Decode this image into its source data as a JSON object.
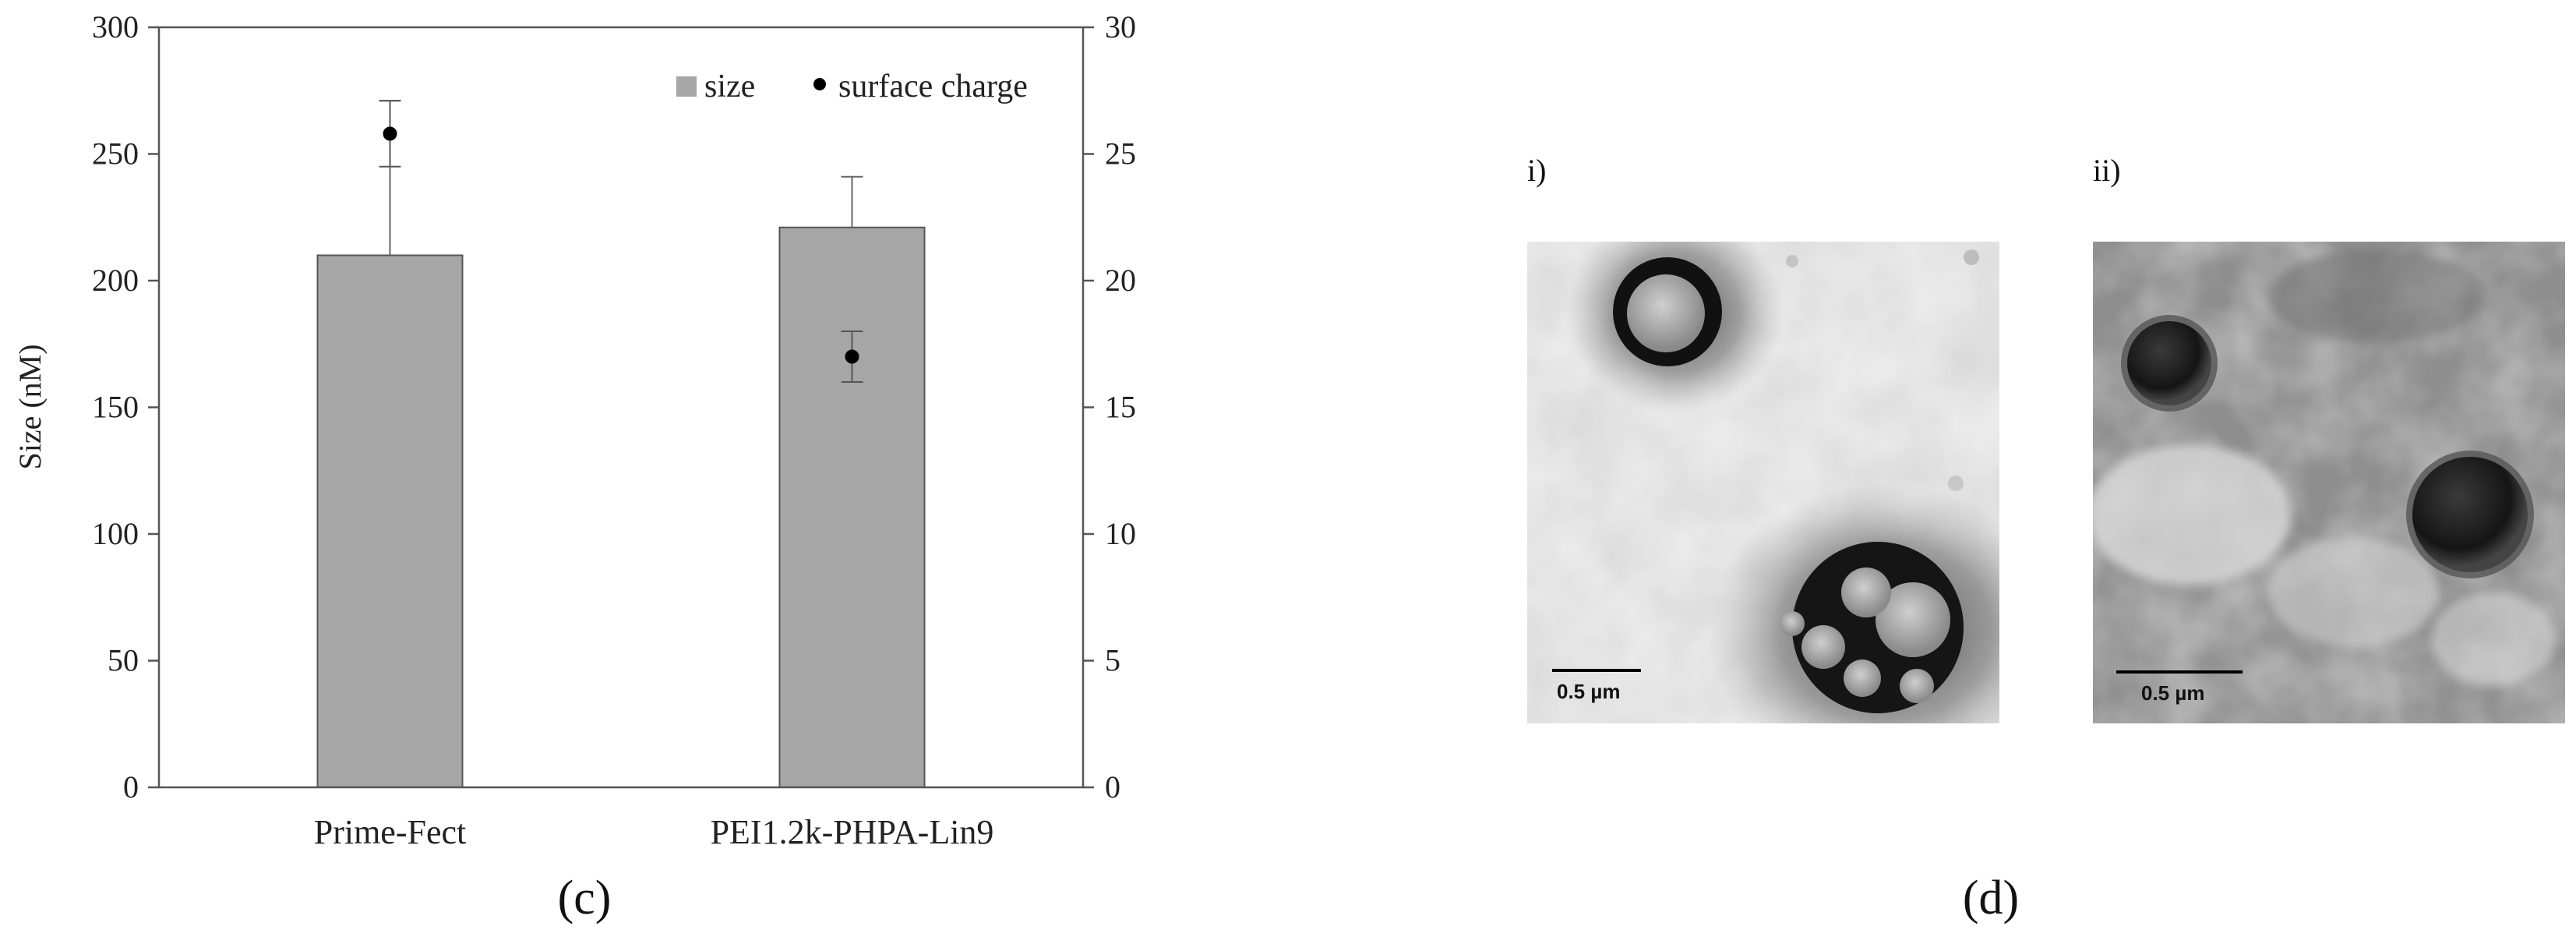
{
  "chart_data": {
    "type": "bar",
    "categories": [
      "Prime-Fect",
      "PEI1.2k-PHPA-Lin9"
    ],
    "series": [
      {
        "name": "size",
        "axis": "left",
        "values": [
          210,
          221
        ],
        "error": [
          61,
          20
        ],
        "color": "#a6a6a6"
      },
      {
        "name": "surface charge",
        "axis": "right",
        "type": "scatter",
        "values": [
          25.8,
          17.0
        ],
        "error": [
          1.3,
          1.0
        ],
        "color": "#000000"
      }
    ],
    "ylabel": "Size (nM)",
    "ylim": [
      0,
      300
    ],
    "yticks": [
      0,
      50,
      100,
      150,
      200,
      250,
      300
    ],
    "y2lim": [
      0,
      30
    ],
    "y2ticks": [
      0,
      5,
      10,
      15,
      20,
      25,
      30
    ],
    "legend_position": "top-right",
    "grid": false,
    "panel_label": "(c)"
  },
  "micrographs": {
    "panel_label": "(d)",
    "images": [
      {
        "label": "i)",
        "scale_bar": "0.5 µm",
        "style": "light"
      },
      {
        "label": "ii)",
        "scale_bar": "0.5 µm",
        "style": "dark"
      }
    ]
  }
}
